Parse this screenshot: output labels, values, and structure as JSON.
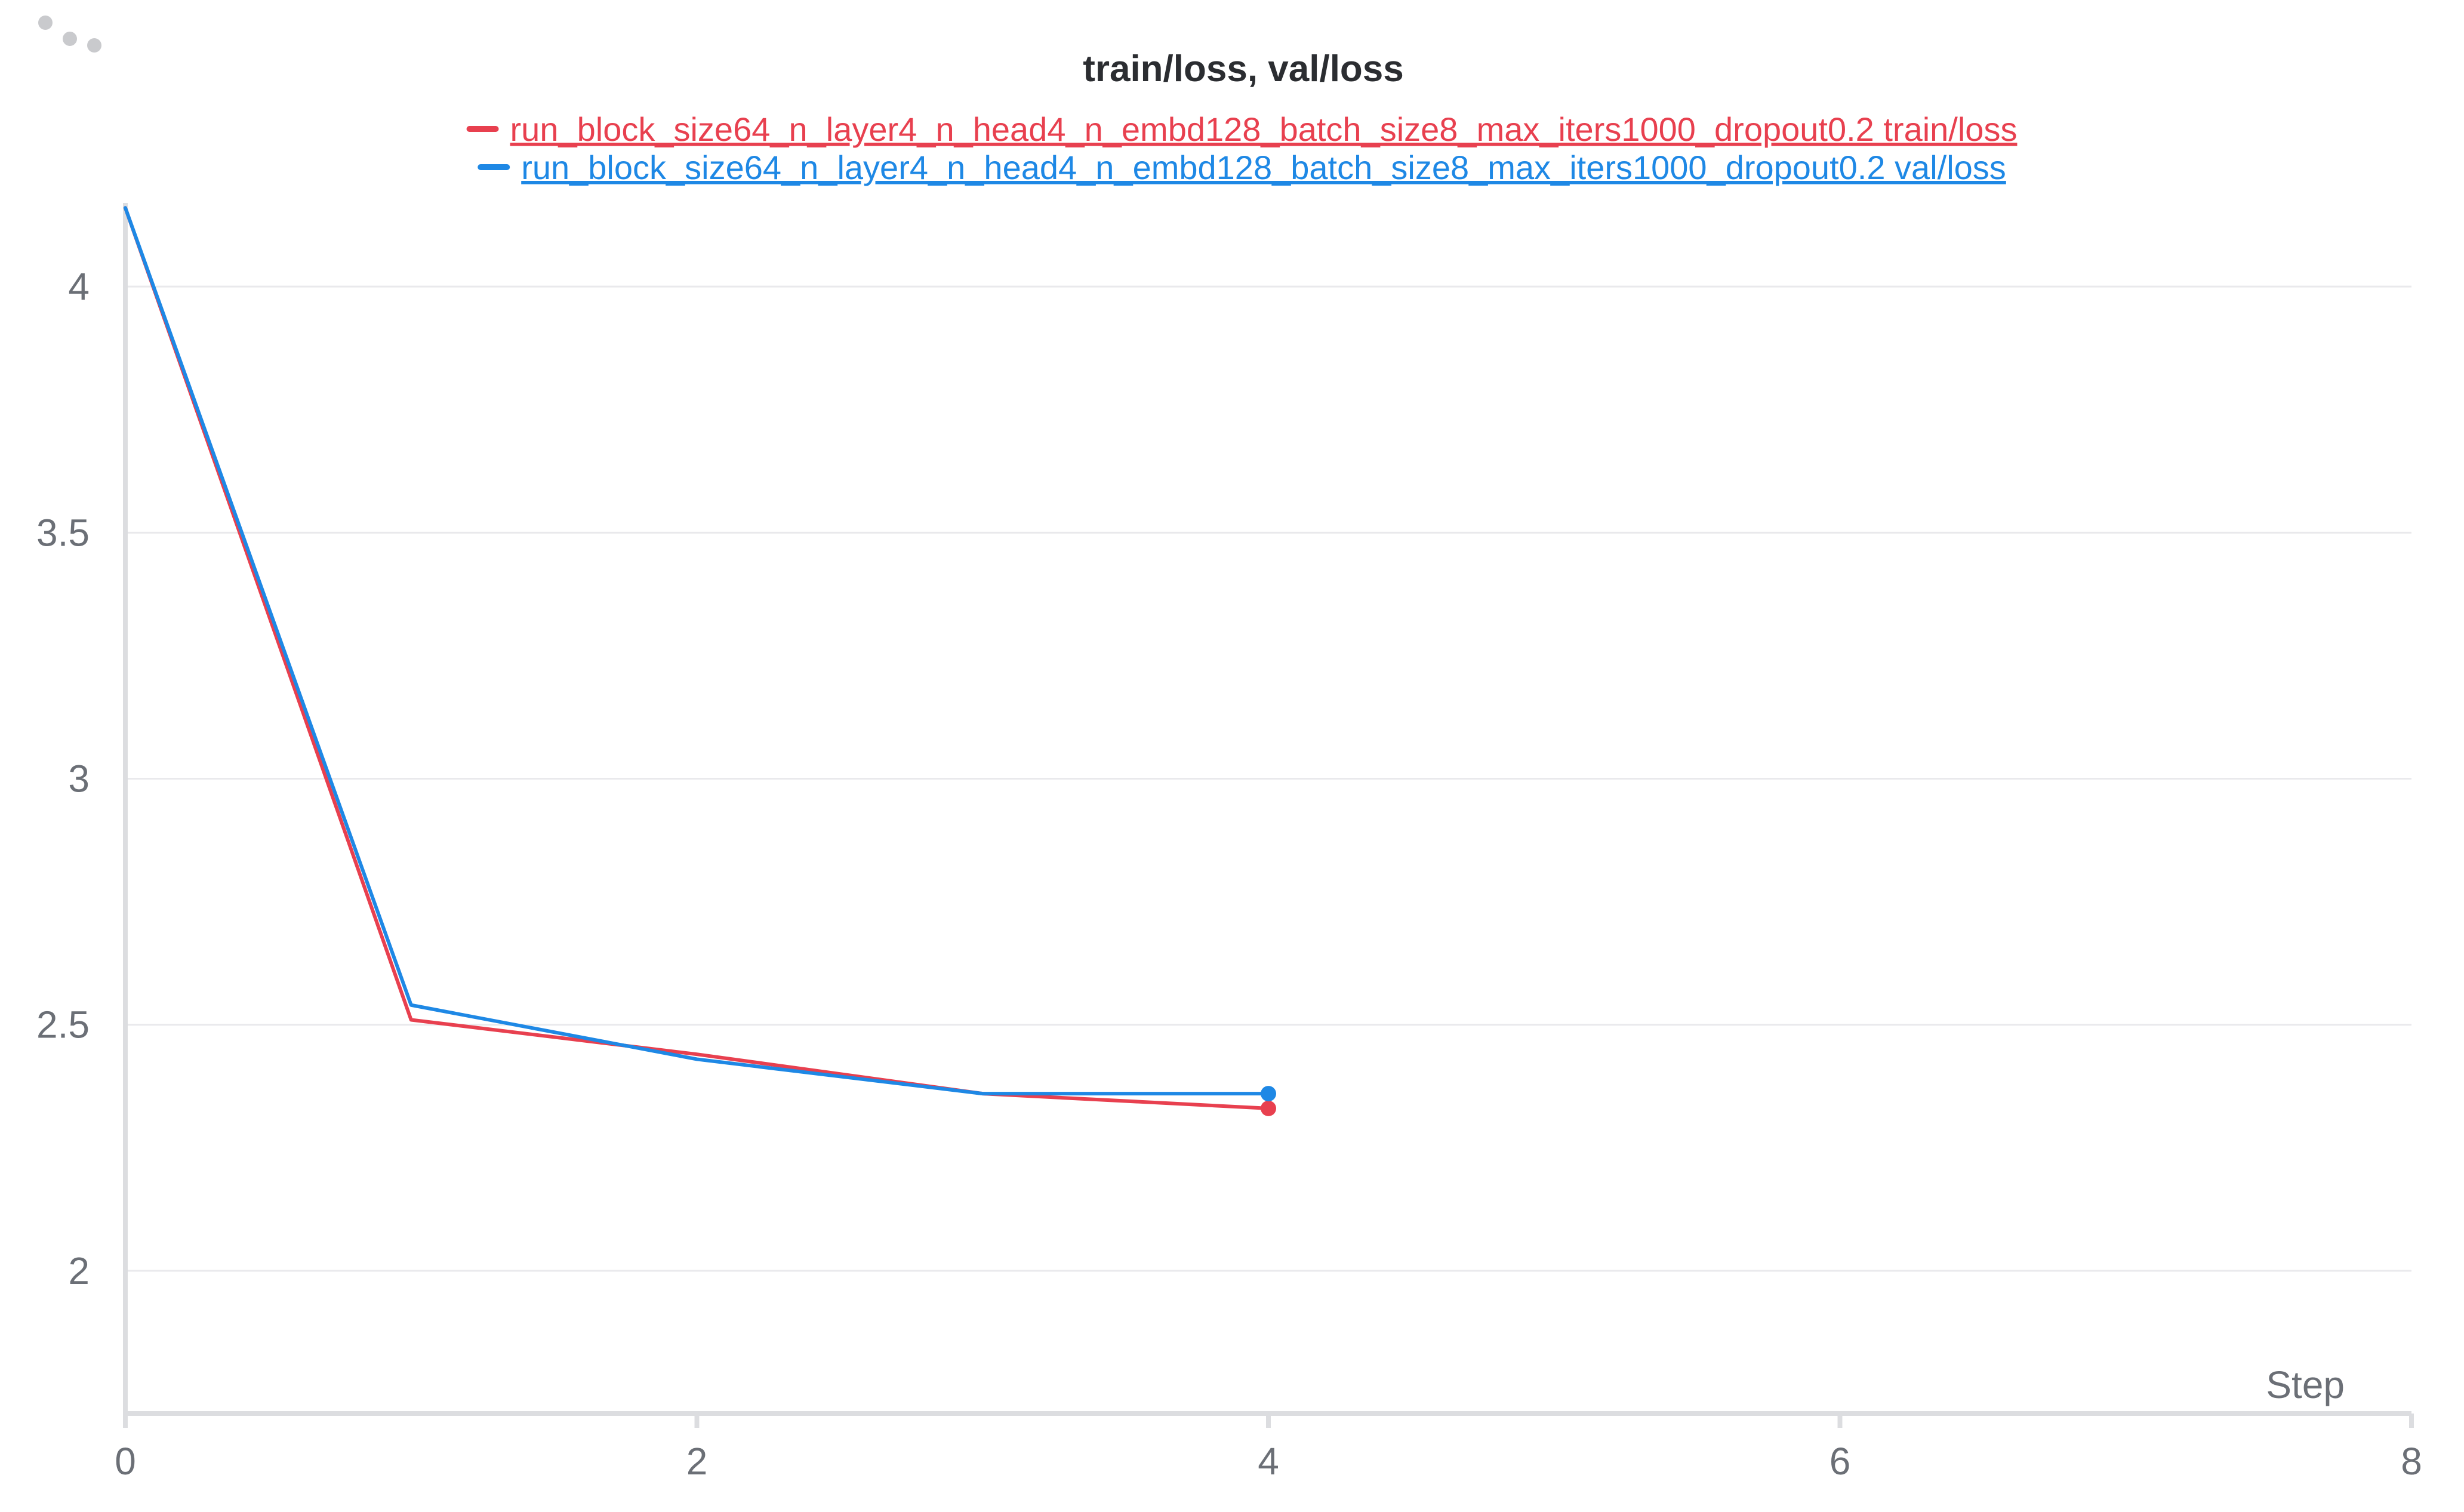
{
  "panel": {
    "menu_icon": "drag-handle-dots-icon"
  },
  "chart_data": {
    "type": "line",
    "title": "train/loss, val/loss",
    "xlabel": "Step",
    "ylabel": "",
    "xlim": [
      0,
      8
    ],
    "ylim": [
      1.71,
      4.17
    ],
    "x_ticks": [
      {
        "value": 0,
        "label": "0"
      },
      {
        "value": 2,
        "label": "2"
      },
      {
        "value": 4,
        "label": "4"
      },
      {
        "value": 6,
        "label": "6"
      },
      {
        "value": 8,
        "label": "8"
      }
    ],
    "y_ticks": [
      {
        "value": 2,
        "label": "2"
      },
      {
        "value": 2.5,
        "label": "2.5"
      },
      {
        "value": 3,
        "label": "3"
      },
      {
        "value": 3.5,
        "label": "3.5"
      },
      {
        "value": 4,
        "label": "4"
      }
    ],
    "grid": true,
    "legend_position": "top-center",
    "series": [
      {
        "name": "run_block_size64_n_layer4_n_head4_n_embd128_batch_size8_max_iters1000_dropout0.2 train/loss",
        "color": "#e8404f",
        "x": [
          0,
          1,
          2,
          3,
          4
        ],
        "y": [
          4.16,
          2.51,
          2.44,
          2.36,
          2.33
        ]
      },
      {
        "name": "run_block_size64_n_layer4_n_head4_n_embd128_batch_size8_max_iters1000_dropout0.2 val/loss",
        "color": "#1e88e5",
        "x": [
          0,
          1,
          2,
          3,
          4
        ],
        "y": [
          4.16,
          2.54,
          2.43,
          2.36,
          2.36
        ]
      }
    ]
  }
}
